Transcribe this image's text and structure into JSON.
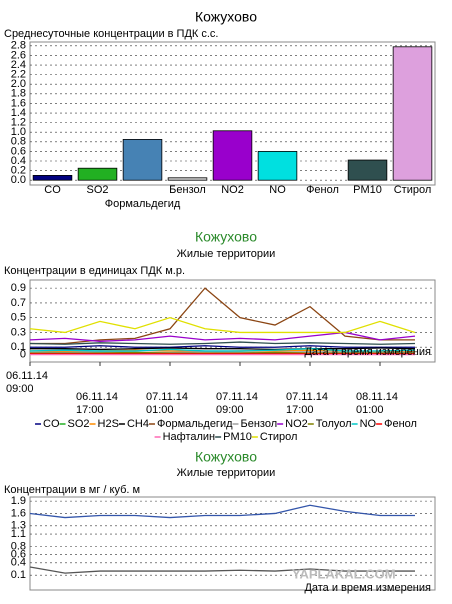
{
  "chart_data": [
    {
      "type": "bar",
      "title": "Кожухово",
      "subtitle": "Среднесуточные концентрации в ПДК с.с.",
      "categories": [
        "CO",
        "SO2",
        "Формальдегид",
        "Бензол",
        "NO2",
        "NO",
        "Фенол",
        "PM10",
        "Стирол"
      ],
      "values": [
        0.1,
        0.25,
        0.85,
        0.05,
        1.03,
        0.6,
        0,
        0.42,
        2.78
      ],
      "colors": [
        "#000080",
        "#22b022",
        "#4682b4",
        "#d3d3d3",
        "#9900cc",
        "#00e0e0",
        "#ff6600",
        "#2f4f4f",
        "#dda0dd"
      ],
      "ylim": [
        -0.1,
        2.88
      ],
      "yticks": [
        {
          "value": 0,
          "label": "0.0"
        },
        0.2,
        0.4,
        0.6,
        0.8,
        {
          "value": 1,
          "label": "1.0"
        },
        1.2,
        1.4,
        1.6,
        1.8,
        {
          "value": 2,
          "label": "2.0"
        },
        2.2,
        2.4,
        2.6,
        2.8
      ],
      "grid": true
    },
    {
      "type": "line",
      "title": "Кожухово",
      "subtitle": "Жилые территории",
      "y_label": "Концентрации в единицах ПДК м.р.",
      "x_label": "Дата и время измерения",
      "categories": [
        "06.11.14 09:00",
        null,
        "06.11.14 17:00",
        null,
        "07.11.14 01:00",
        null,
        "07.11.14 09:00",
        null,
        "07.11.14 17:00",
        null,
        "08.11.14 01:00",
        null
      ],
      "ylim": [
        -0.1,
        1.01
      ],
      "yticks": [
        0,
        0.1,
        0.3,
        0.5,
        0.7,
        0.9
      ],
      "grid": true,
      "series": [
        {
          "name": "CO",
          "color": "#000080",
          "values": [
            0.1,
            0.1,
            0.12,
            0.1,
            0.1,
            0.12,
            0.1,
            0.1,
            0.12,
            0.1,
            0.1,
            0.1
          ]
        },
        {
          "name": "SO2",
          "color": "#22b022",
          "values": [
            0.02,
            0.02,
            0.03,
            0.02,
            0.02,
            0.02,
            0.03,
            0.02,
            0.02,
            0.02,
            0.03,
            0.02
          ]
        },
        {
          "name": "H2S",
          "color": "#ff8c00",
          "values": [
            0.05,
            0.04,
            0.05,
            0.06,
            0.05,
            0.04,
            0.05,
            0.05,
            0.06,
            0.05,
            0.04,
            0.05
          ]
        },
        {
          "name": "CH4",
          "color": "#000000",
          "values": [
            0.08,
            0.08,
            0.07,
            0.08,
            0.09,
            0.08,
            0.08,
            0.07,
            0.08,
            0.08,
            0.09,
            0.08
          ]
        },
        {
          "name": "Формальдегид",
          "color": "#8b4513",
          "values": [
            0.15,
            0.15,
            0.2,
            0.22,
            0.35,
            0.9,
            0.5,
            0.4,
            0.65,
            0.25,
            0.2,
            0.2
          ]
        },
        {
          "name": "Бензол",
          "color": "#a0a0a0",
          "values": [
            0.03,
            0.03,
            0.04,
            0.03,
            0.03,
            0.04,
            0.03,
            0.03,
            0.04,
            0.03,
            0.03,
            0.03
          ]
        },
        {
          "name": "NO2",
          "color": "#9900cc",
          "values": [
            0.2,
            0.22,
            0.18,
            0.2,
            0.25,
            0.2,
            0.22,
            0.2,
            0.25,
            0.3,
            0.2,
            0.25
          ]
        },
        {
          "name": "Толуол",
          "color": "#808000",
          "values": [
            0.02,
            0.02,
            0.02,
            0.03,
            0.02,
            0.02,
            0.02,
            0.03,
            0.02,
            0.02,
            0.02,
            0.02
          ]
        },
        {
          "name": "NO",
          "color": "#00c8c8",
          "values": [
            0.05,
            0.06,
            0.05,
            0.05,
            0.07,
            0.05,
            0.05,
            0.06,
            0.08,
            0.05,
            0.05,
            0.06
          ]
        },
        {
          "name": "Фенол",
          "color": "#ff0000",
          "values": [
            0.01,
            0.01,
            0.01,
            0.01,
            0.01,
            0.01,
            0.01,
            0.01,
            0.01,
            0.01,
            0.01,
            0.01
          ]
        },
        {
          "name": "Нафталин",
          "color": "#ff69b4",
          "values": [
            0,
            0,
            0,
            0,
            0,
            0,
            0,
            0,
            0,
            0,
            0,
            0
          ]
        },
        {
          "name": "PM10",
          "color": "#2f4f4f",
          "values": [
            0.15,
            0.14,
            0.16,
            0.15,
            0.14,
            0.15,
            0.17,
            0.15,
            0.16,
            0.15,
            0.14,
            0.15
          ]
        },
        {
          "name": "Стирол",
          "color": "#e0e000",
          "values": [
            0.35,
            0.3,
            0.45,
            0.35,
            0.5,
            0.35,
            0.3,
            0.3,
            0.3,
            0.3,
            0.45,
            0.3
          ]
        }
      ]
    },
    {
      "type": "line",
      "title": "Кожухово",
      "subtitle": "Жилые территории",
      "y_label": "Концентрации в мг / куб. м",
      "x_label": "Дата и время измерения",
      "ylim": [
        -0.26,
        2.0
      ],
      "yticks": [
        0.1,
        0.4,
        0.6,
        0.8,
        1.1,
        1.3,
        1.6,
        1.9
      ],
      "grid": true,
      "series": [
        {
          "color": "#3355aa",
          "values": [
            1.6,
            1.5,
            1.55,
            1.55,
            1.5,
            1.55,
            1.55,
            1.6,
            1.8,
            1.65,
            1.55,
            1.55
          ]
        },
        {
          "color": "#555555",
          "values": [
            0.3,
            0.15,
            0.2,
            0.2,
            0.2,
            0.2,
            0.22,
            0.2,
            0.25,
            0.2,
            0.2,
            0.2
          ]
        }
      ]
    }
  ],
  "watermark": "YAPLAKAL.COM"
}
